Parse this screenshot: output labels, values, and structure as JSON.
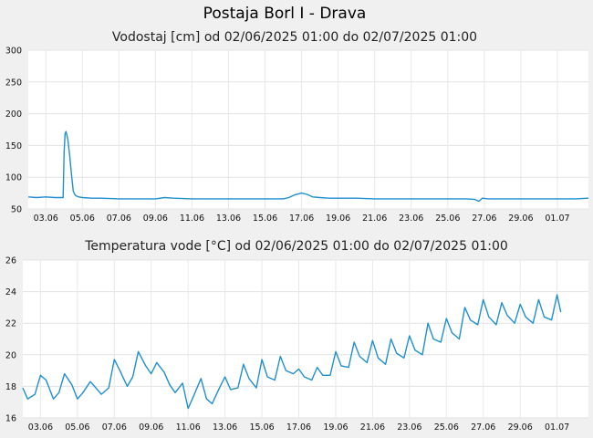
{
  "page_title": "Postaja Borl I - Drava",
  "chart_data": [
    {
      "type": "line",
      "title": "Vodostaj [cm] od 02/06/2025 01:00 do 02/07/2025 01:00",
      "x_tick_labels": [
        "03.06",
        "05.06",
        "07.06",
        "09.06",
        "11.06",
        "13.06",
        "15.06",
        "17.06",
        "19.06",
        "21.06",
        "23.06",
        "25.06",
        "27.06",
        "29.06",
        "01.07"
      ],
      "x_tick_days": [
        3,
        5,
        7,
        9,
        11,
        13,
        15,
        17,
        19,
        21,
        23,
        25,
        27,
        29,
        31
      ],
      "xlim_days": [
        2.04,
        32.7
      ],
      "ylim": [
        50,
        300
      ],
      "y_ticks": [
        50,
        100,
        150,
        200,
        250,
        300
      ],
      "grid": true,
      "color": "#1f8fd0",
      "series": [
        {
          "x": [
            2.04,
            2.5,
            3.0,
            3.5,
            3.95,
            4.0,
            4.05,
            4.1,
            4.2,
            4.3,
            4.4,
            4.5,
            4.6,
            4.7,
            4.8,
            5.0,
            5.5,
            6.0,
            7,
            8,
            9,
            9.5,
            10,
            11,
            12,
            13,
            14,
            15,
            15.5,
            16,
            16.3,
            16.6,
            17.0,
            17.3,
            17.6,
            18,
            18.5,
            19,
            20,
            21,
            22,
            23,
            24,
            25,
            26,
            26.5,
            26.7,
            26.9,
            27.2,
            28,
            29,
            30,
            31,
            32,
            32.7
          ],
          "y": [
            69,
            68,
            69,
            68,
            68,
            140,
            168,
            172,
            160,
            135,
            105,
            78,
            72,
            70,
            69,
            68,
            67,
            67,
            66,
            66,
            66,
            68,
            67,
            66,
            66,
            66,
            66,
            66,
            66,
            66,
            68,
            72,
            75,
            73,
            69,
            68,
            67,
            67,
            67,
            66,
            66,
            66,
            66,
            66,
            66,
            65,
            62,
            67,
            66,
            66,
            66,
            66,
            66,
            66,
            67
          ]
        }
      ]
    },
    {
      "type": "line",
      "title": "Temperatura vode [°C] od 02/06/2025 01:00 do 02/07/2025 01:00",
      "x_tick_labels": [
        "03.06",
        "05.06",
        "07.06",
        "09.06",
        "11.06",
        "13.06",
        "15.06",
        "17.06",
        "19.06",
        "21.06",
        "23.06",
        "25.06",
        "27.06",
        "29.06",
        "01.07"
      ],
      "x_tick_days": [
        3,
        5,
        7,
        9,
        11,
        13,
        15,
        17,
        19,
        21,
        23,
        25,
        27,
        29,
        31
      ],
      "xlim_days": [
        2.04,
        32.7
      ],
      "ylim": [
        16,
        26
      ],
      "y_ticks": [
        16,
        18,
        20,
        22,
        24,
        26
      ],
      "grid": true,
      "color": "#1f8fd0",
      "series": [
        {
          "x": [
            2.04,
            2.3,
            2.7,
            3.0,
            3.3,
            3.7,
            4.0,
            4.3,
            4.7,
            5.0,
            5.3,
            5.7,
            6.0,
            6.3,
            6.7,
            7.0,
            7.3,
            7.7,
            8.0,
            8.3,
            8.7,
            9.0,
            9.3,
            9.7,
            10.0,
            10.3,
            10.7,
            11.0,
            11.3,
            11.7,
            12.0,
            12.3,
            12.7,
            13.0,
            13.3,
            13.7,
            14.0,
            14.3,
            14.7,
            15.0,
            15.3,
            15.7,
            16.0,
            16.3,
            16.7,
            17.0,
            17.3,
            17.7,
            18.0,
            18.3,
            18.7,
            19.0,
            19.3,
            19.7,
            20.0,
            20.3,
            20.7,
            21.0,
            21.3,
            21.7,
            22.0,
            22.3,
            22.7,
            23.0,
            23.3,
            23.7,
            24.0,
            24.3,
            24.7,
            25.0,
            25.3,
            25.7,
            26.0,
            26.3,
            26.7,
            27.0,
            27.3,
            27.7,
            28.0,
            28.3,
            28.7,
            29.0,
            29.3,
            29.7,
            30.0,
            30.3,
            30.7,
            31.0,
            31.2
          ],
          "y": [
            17.9,
            17.2,
            17.5,
            18.7,
            18.4,
            17.2,
            17.6,
            18.8,
            18.1,
            17.2,
            17.6,
            18.3,
            17.9,
            17.5,
            17.9,
            19.7,
            19.0,
            18.0,
            18.6,
            20.2,
            19.3,
            18.8,
            19.5,
            18.9,
            18.1,
            17.6,
            18.2,
            16.6,
            17.4,
            18.5,
            17.2,
            16.9,
            17.9,
            18.6,
            17.8,
            17.9,
            19.4,
            18.5,
            17.9,
            19.7,
            18.6,
            18.4,
            19.9,
            19.0,
            18.8,
            19.1,
            18.6,
            18.4,
            19.2,
            18.7,
            18.7,
            20.2,
            19.3,
            19.2,
            20.8,
            19.9,
            19.5,
            20.9,
            19.8,
            19.4,
            21.0,
            20.1,
            19.8,
            21.2,
            20.3,
            20.0,
            22.0,
            21.0,
            20.8,
            22.3,
            21.4,
            21.0,
            23.0,
            22.2,
            21.9,
            23.5,
            22.4,
            21.9,
            23.3,
            22.5,
            22.0,
            23.2,
            22.4,
            22.0,
            23.5,
            22.4,
            22.2,
            23.8,
            22.7
          ]
        }
      ]
    }
  ]
}
